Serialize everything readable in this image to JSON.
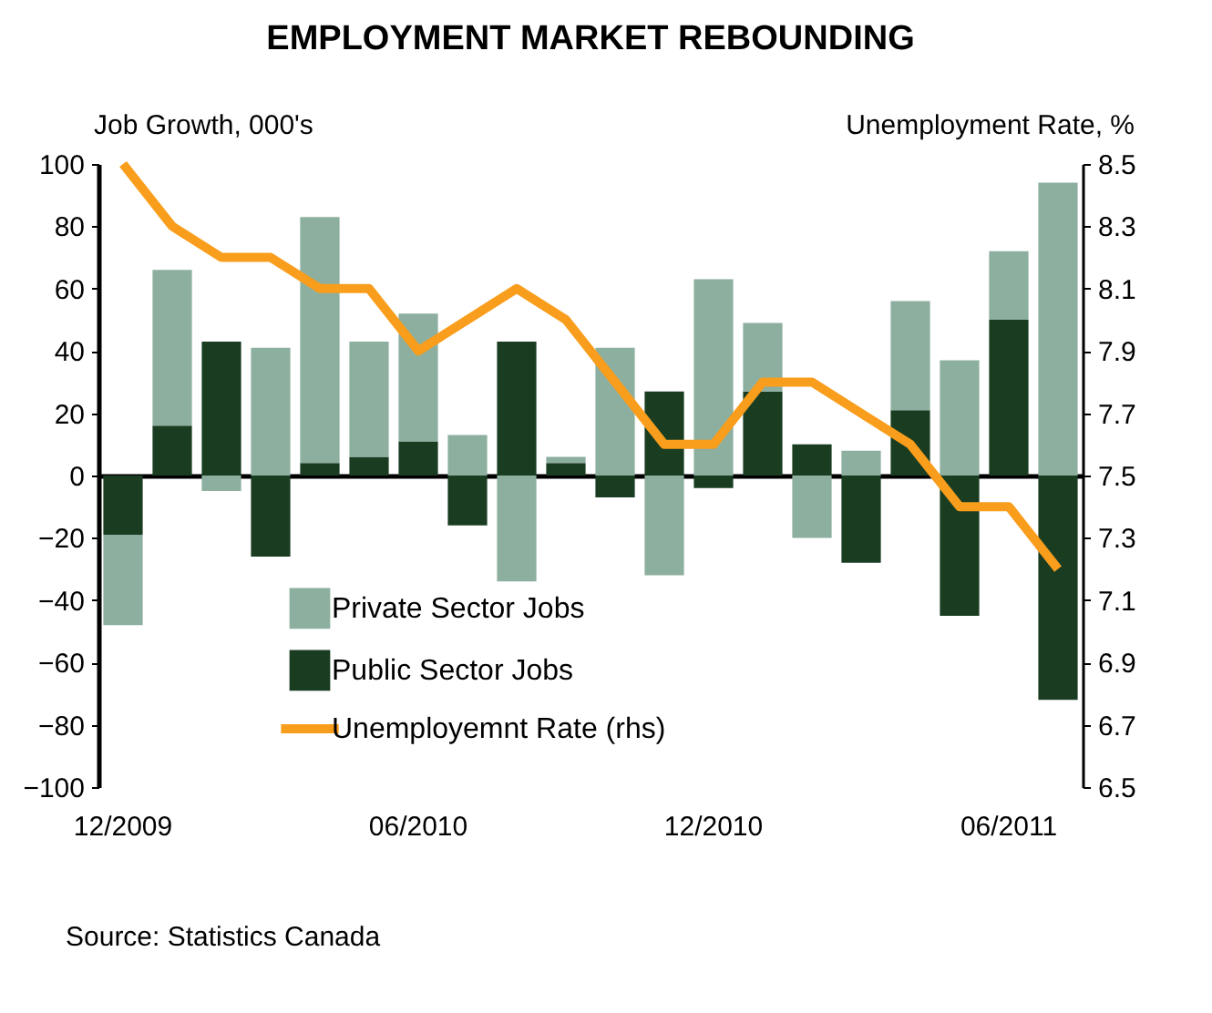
{
  "chart_data": {
    "type": "bar",
    "title": "EMPLOYMENT MARKET REBOUNDING",
    "ylabel": "Job Growth, 000's",
    "y2label": "Unemployment Rate, %",
    "categories": [
      "12/2009",
      null,
      null,
      null,
      null,
      null,
      "06/2010",
      null,
      null,
      null,
      null,
      null,
      "12/2010",
      null,
      null,
      null,
      null,
      null,
      "06/2011",
      null
    ],
    "stacked": true,
    "series": [
      {
        "name": "Public Sector Jobs",
        "color": "#1a3d22",
        "values": [
          -19,
          16,
          43,
          -26,
          4,
          6,
          11,
          -16,
          43,
          4,
          -7,
          27,
          -4,
          27,
          10,
          -28,
          21,
          -45,
          50,
          -72
        ]
      },
      {
        "name": "Private Sector Jobs",
        "color": "#8daf9f",
        "values": [
          -29,
          50,
          -5,
          41,
          79,
          37,
          41,
          13,
          -34,
          2,
          41,
          -32,
          63,
          22,
          -20,
          8,
          35,
          37,
          22,
          94
        ]
      },
      {
        "name": "Unemployemnt Rate (rhs)",
        "type": "line",
        "axis": "y2",
        "color": "#f99d1c",
        "values": [
          8.5,
          8.3,
          8.2,
          8.2,
          8.1,
          8.1,
          7.9,
          8.0,
          8.1,
          8.0,
          7.8,
          7.6,
          7.6,
          7.8,
          7.8,
          7.7,
          7.6,
          7.4,
          7.4,
          7.2
        ]
      }
    ],
    "ylim": [
      -100,
      100
    ],
    "yticks": [
      -100,
      -80,
      -60,
      -40,
      -20,
      0,
      20,
      40,
      60,
      80,
      100
    ],
    "y2lim": [
      6.5,
      8.5
    ],
    "y2ticks": [
      6.5,
      6.7,
      6.9,
      7.1,
      7.3,
      7.5,
      7.7,
      7.9,
      8.1,
      8.3,
      8.5
    ],
    "legend": "bottom",
    "marker": "none",
    "line_style": "solid",
    "annotations": [
      "Source: Statistics Canada"
    ]
  }
}
